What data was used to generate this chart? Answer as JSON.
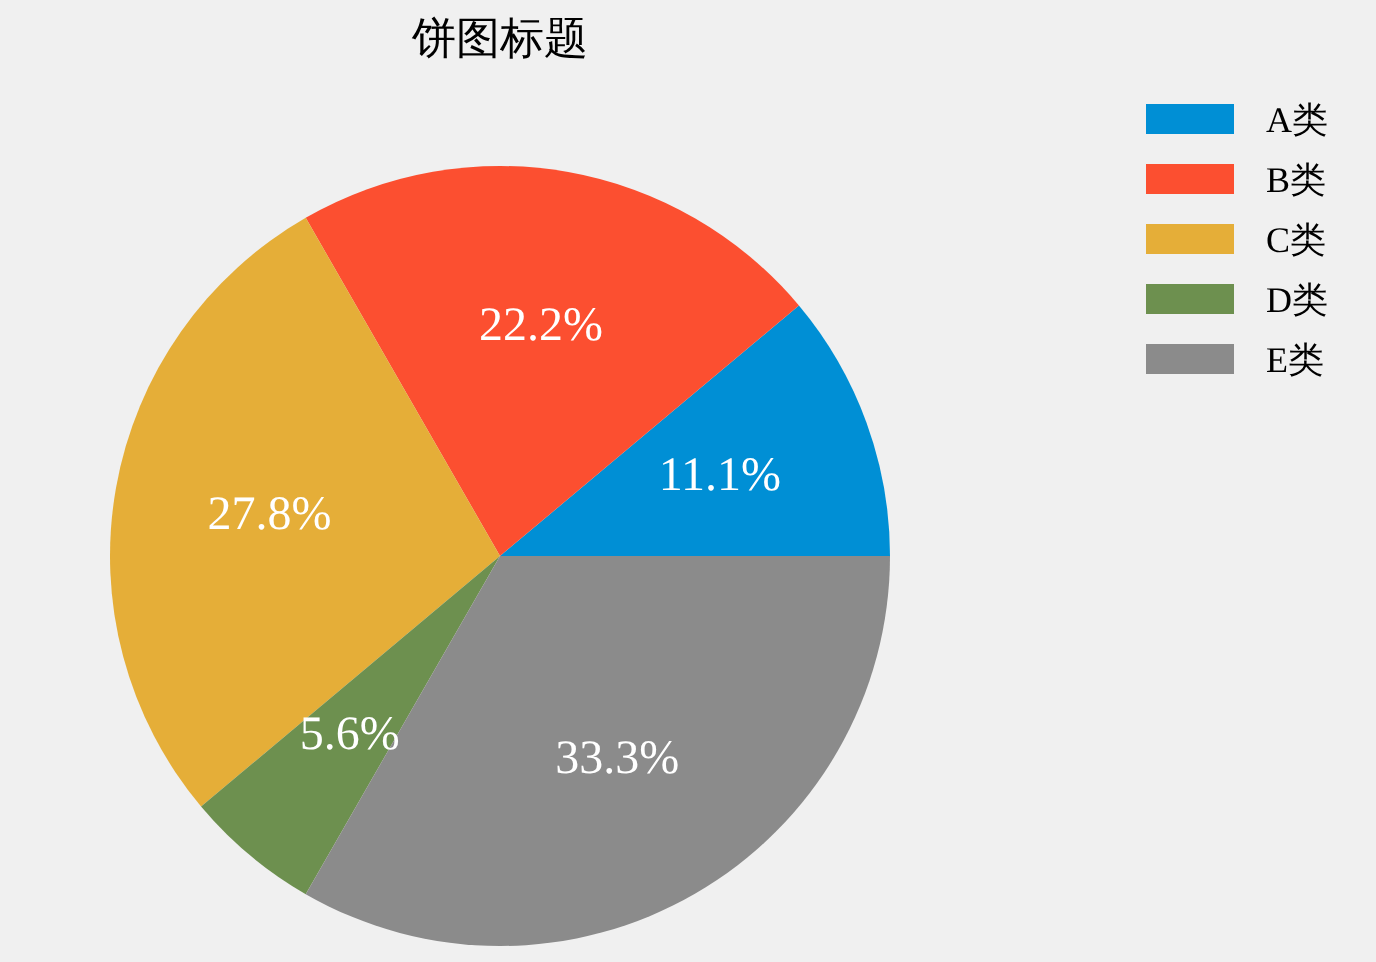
{
  "chart_data": {
    "type": "pie",
    "title": "饼图标题",
    "categories": [
      "A类",
      "B类",
      "C类",
      "D类",
      "E类"
    ],
    "values": [
      11.1,
      22.2,
      27.8,
      5.6,
      33.3
    ],
    "value_labels": [
      "11.1%",
      "22.2%",
      "27.8%",
      "5.6%",
      "33.3%"
    ],
    "colors": [
      "#008fd5",
      "#fc4f30",
      "#e5ae38",
      "#6d904f",
      "#8b8b8b"
    ],
    "legend": "top right"
  }
}
